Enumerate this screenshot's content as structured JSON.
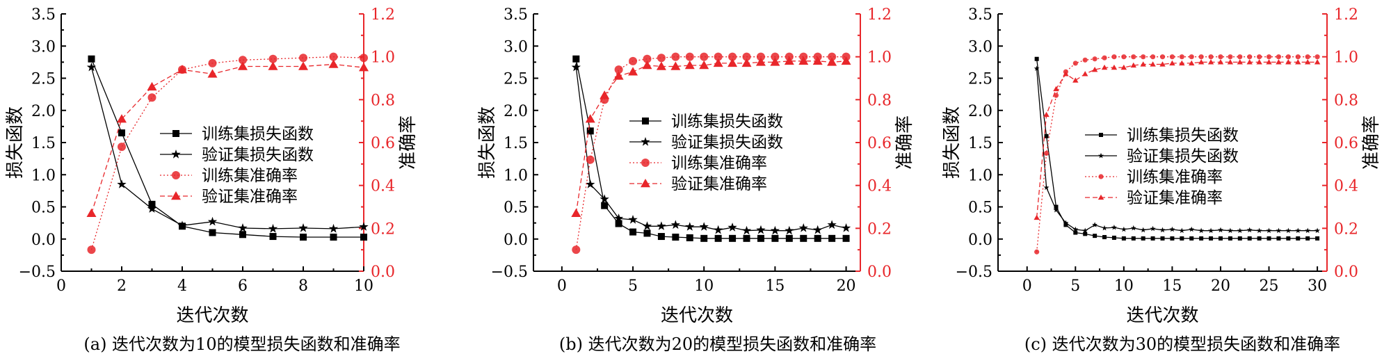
{
  "colors": {
    "loss": "#000000",
    "accuracy": "#e8262a"
  },
  "chart_data": [
    {
      "type": "line",
      "caption": "(a) 迭代次数为10的模型损失函数和准确率",
      "xlabel": "迭代次数",
      "ylabel_left": "损失函数",
      "ylabel_right": "准确率",
      "xlim": [
        0,
        10
      ],
      "xticks": [
        0,
        2,
        4,
        6,
        8,
        10
      ],
      "ylim_left": [
        -0.5,
        3.5
      ],
      "yticks_left": [
        -0.5,
        0.0,
        0.5,
        1.0,
        1.5,
        2.0,
        2.5,
        3.0,
        3.5
      ],
      "ylim_right": [
        0.0,
        1.2
      ],
      "yticks_right": [
        0.0,
        0.2,
        0.4,
        0.6,
        0.8,
        1.0,
        1.2
      ],
      "x": [
        1,
        2,
        3,
        4,
        5,
        6,
        7,
        8,
        9,
        10
      ],
      "series": [
        {
          "name": "训练集损失函数",
          "axis": "left",
          "marker": "square",
          "dash": "solid",
          "values": [
            2.8,
            1.65,
            0.54,
            0.2,
            0.1,
            0.07,
            0.04,
            0.03,
            0.03,
            0.03
          ]
        },
        {
          "name": "验证集损失函数",
          "axis": "left",
          "marker": "star",
          "dash": "solid",
          "values": [
            2.67,
            0.85,
            0.47,
            0.21,
            0.27,
            0.17,
            0.16,
            0.17,
            0.16,
            0.19
          ]
        },
        {
          "name": "训练集准确率",
          "axis": "right",
          "marker": "circle",
          "dash": "dot",
          "values": [
            0.1,
            0.58,
            0.81,
            0.94,
            0.97,
            0.985,
            0.99,
            0.995,
            1.0,
            0.995
          ]
        },
        {
          "name": "验证集准确率",
          "axis": "right",
          "marker": "triangle",
          "dash": "dash",
          "values": [
            0.27,
            0.71,
            0.86,
            0.94,
            0.92,
            0.955,
            0.955,
            0.955,
            0.965,
            0.95
          ]
        }
      ],
      "legend": "center-right"
    },
    {
      "type": "line",
      "caption": "(b) 迭代次数为20的模型损失函数和准确率",
      "xlabel": "迭代次数",
      "ylabel_left": "损失函数",
      "ylabel_right": "准确率",
      "xlim": [
        -2,
        21
      ],
      "xticks": [
        0,
        5,
        10,
        15,
        20
      ],
      "ylim_left": [
        -0.5,
        3.5
      ],
      "yticks_left": [
        -0.5,
        0.0,
        0.5,
        1.0,
        1.5,
        2.0,
        2.5,
        3.0,
        3.5
      ],
      "ylim_right": [
        0.0,
        1.2
      ],
      "yticks_right": [
        0.0,
        0.2,
        0.4,
        0.6,
        0.8,
        1.0,
        1.2
      ],
      "x": [
        1,
        2,
        3,
        4,
        5,
        6,
        7,
        8,
        9,
        10,
        11,
        12,
        13,
        14,
        15,
        16,
        17,
        18,
        19,
        20
      ],
      "series": [
        {
          "name": "训练集损失函数",
          "axis": "left",
          "marker": "square",
          "dash": "solid",
          "values": [
            2.8,
            1.68,
            0.52,
            0.24,
            0.11,
            0.09,
            0.04,
            0.03,
            0.02,
            0.01,
            0.01,
            0.01,
            0.01,
            0.01,
            0.01,
            0.01,
            0.01,
            0.01,
            0.01,
            0.01
          ]
        },
        {
          "name": "验证集损失函数",
          "axis": "left",
          "marker": "star",
          "dash": "solid",
          "values": [
            2.67,
            0.85,
            0.62,
            0.32,
            0.3,
            0.2,
            0.2,
            0.22,
            0.19,
            0.19,
            0.14,
            0.18,
            0.13,
            0.14,
            0.13,
            0.13,
            0.17,
            0.14,
            0.22,
            0.17
          ]
        },
        {
          "name": "训练集准确率",
          "axis": "right",
          "marker": "circle",
          "dash": "dot",
          "values": [
            0.1,
            0.52,
            0.8,
            0.94,
            0.98,
            0.99,
            0.995,
            1.0,
            1.0,
            1.0,
            1.0,
            1.0,
            1.0,
            1.0,
            1.0,
            1.0,
            1.0,
            1.0,
            1.0,
            1.0
          ]
        },
        {
          "name": "验证集准确率",
          "axis": "right",
          "marker": "triangle",
          "dash": "dash",
          "values": [
            0.27,
            0.71,
            0.82,
            0.91,
            0.93,
            0.96,
            0.955,
            0.955,
            0.96,
            0.96,
            0.97,
            0.97,
            0.97,
            0.975,
            0.975,
            0.98,
            0.98,
            0.98,
            0.975,
            0.98
          ]
        }
      ],
      "legend": "center-right"
    },
    {
      "type": "line",
      "caption": "(c) 迭代次数为30的模型损失函数和准确率",
      "xlabel": "迭代次数",
      "ylabel_left": "损失函数",
      "ylabel_right": "准确率",
      "xlim": [
        -3,
        31
      ],
      "xticks": [
        0,
        5,
        10,
        15,
        20,
        25,
        30
      ],
      "ylim_left": [
        -0.5,
        3.5
      ],
      "yticks_left": [
        -0.5,
        0.0,
        0.5,
        1.0,
        1.5,
        2.0,
        2.5,
        3.0,
        3.5
      ],
      "ylim_right": [
        0.0,
        1.2
      ],
      "yticks_right": [
        0.0,
        0.2,
        0.4,
        0.6,
        0.8,
        1.0,
        1.2
      ],
      "x": [
        1,
        2,
        3,
        4,
        5,
        6,
        7,
        8,
        9,
        10,
        11,
        12,
        13,
        14,
        15,
        16,
        17,
        18,
        19,
        20,
        21,
        22,
        23,
        24,
        25,
        26,
        27,
        28,
        29,
        30
      ],
      "series": [
        {
          "name": "训练集损失函数",
          "axis": "left",
          "marker": "square",
          "dash": "solid",
          "small": true,
          "values": [
            2.8,
            1.6,
            0.5,
            0.22,
            0.1,
            0.08,
            0.05,
            0.03,
            0.02,
            0.01,
            0.01,
            0.01,
            0.01,
            0.01,
            0.01,
            0.01,
            0.01,
            0.01,
            0.01,
            0.01,
            0.01,
            0.01,
            0.01,
            0.01,
            0.01,
            0.01,
            0.01,
            0.01,
            0.01,
            0.01
          ]
        },
        {
          "name": "验证集损失函数",
          "axis": "left",
          "marker": "star",
          "dash": "solid",
          "small": true,
          "values": [
            2.65,
            0.8,
            0.45,
            0.25,
            0.15,
            0.13,
            0.22,
            0.17,
            0.18,
            0.15,
            0.17,
            0.14,
            0.16,
            0.14,
            0.15,
            0.13,
            0.15,
            0.13,
            0.13,
            0.14,
            0.13,
            0.13,
            0.14,
            0.13,
            0.13,
            0.13,
            0.13,
            0.13,
            0.13,
            0.13
          ]
        },
        {
          "name": "训练集准确率",
          "axis": "right",
          "marker": "circle",
          "dash": "dot",
          "small": true,
          "values": [
            0.09,
            0.55,
            0.82,
            0.93,
            0.97,
            0.985,
            0.99,
            0.995,
            1.0,
            1.0,
            1.0,
            1.0,
            1.0,
            1.0,
            1.0,
            1.0,
            1.0,
            1.0,
            1.0,
            1.0,
            1.0,
            1.0,
            1.0,
            1.0,
            1.0,
            1.0,
            1.0,
            1.0,
            1.0,
            1.0
          ]
        },
        {
          "name": "验证集准确率",
          "axis": "right",
          "marker": "triangle",
          "dash": "dash",
          "small": true,
          "values": [
            0.25,
            0.73,
            0.85,
            0.92,
            0.89,
            0.92,
            0.94,
            0.95,
            0.95,
            0.95,
            0.96,
            0.965,
            0.965,
            0.965,
            0.97,
            0.97,
            0.97,
            0.975,
            0.975,
            0.975,
            0.975,
            0.975,
            0.975,
            0.975,
            0.975,
            0.975,
            0.975,
            0.975,
            0.975,
            0.975
          ]
        }
      ],
      "legend": "center-right"
    }
  ]
}
